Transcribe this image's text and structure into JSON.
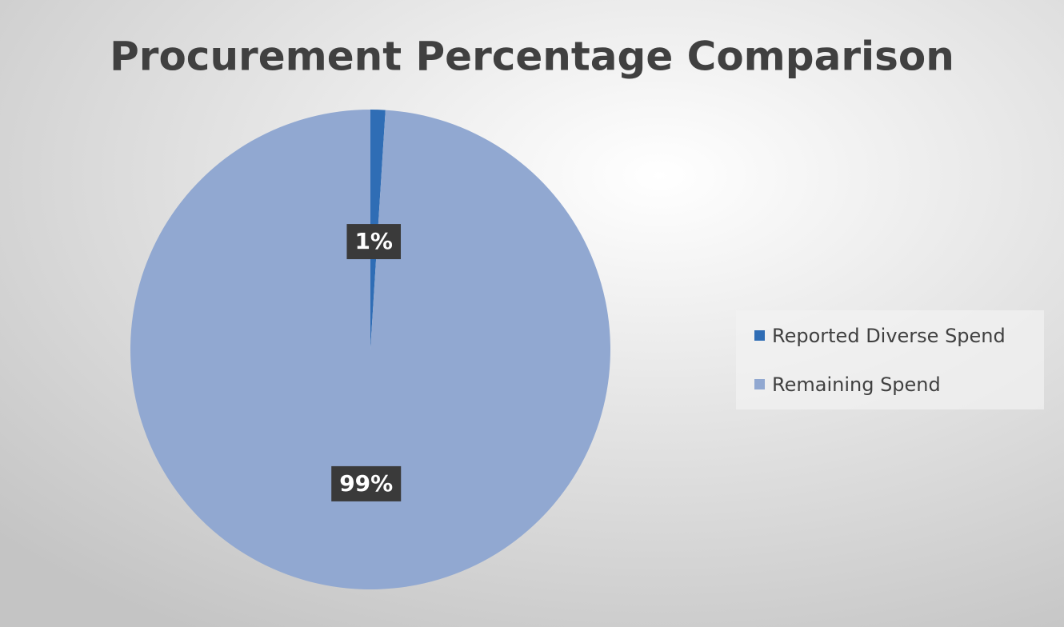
{
  "chart_data": {
    "type": "pie",
    "title": "Procurement Percentage Comparison",
    "categories": [
      "Reported Diverse Spend",
      "Remaining Spend"
    ],
    "values": [
      1,
      99
    ],
    "value_labels": [
      "1%",
      "99%"
    ],
    "colors": [
      "#2f6db5",
      "#91a8d1"
    ],
    "legend": "right"
  }
}
